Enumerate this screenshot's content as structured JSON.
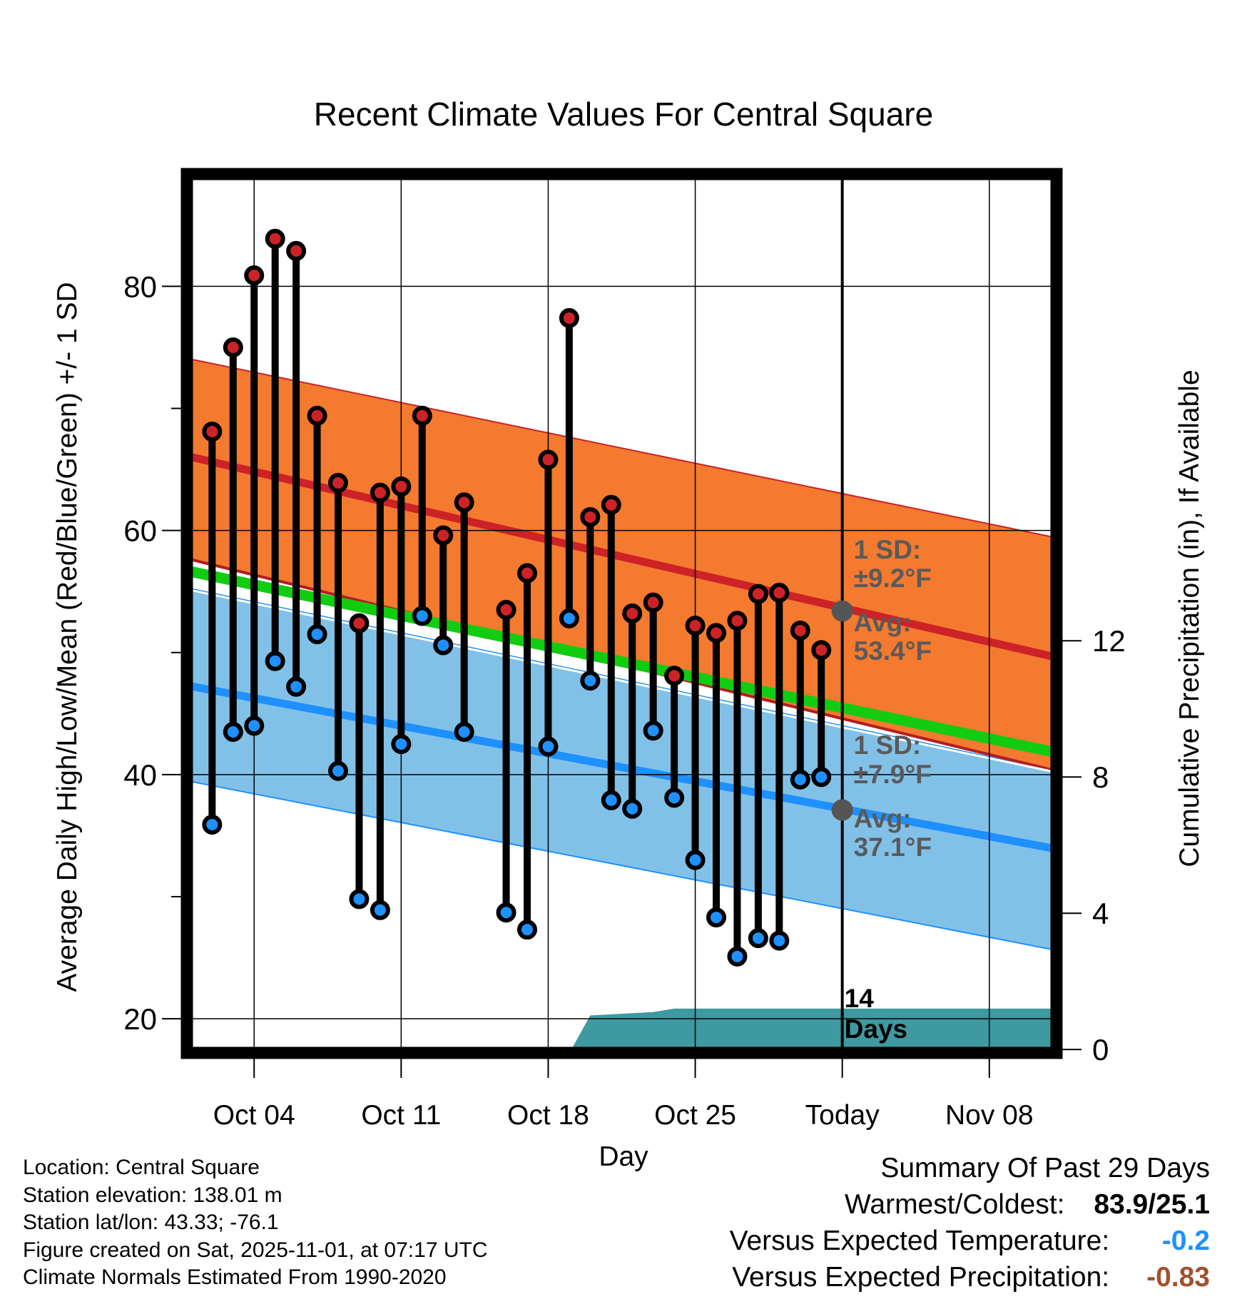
{
  "colors": {
    "high_band": "#f47a2f",
    "high_mean": "#cc2228",
    "low_band": "#82c1e7",
    "low_mean": "#1e90ff",
    "mean_line": "#11cc11",
    "high_dot": "#cc2228",
    "low_dot": "#1e90ff",
    "precip_fill": "#3f99a0",
    "annotation_text": "#5a5a5a",
    "temp_departure": "#1e90ff",
    "precip_departure": "#a0522d"
  },
  "chart_data": {
    "type": "line",
    "title": "Recent Climate Values For Central Square",
    "xlabel": "Day",
    "ylabel": "Average Daily High/Low/Mean (Red/Blue/Green) +/- 1 SD",
    "y2label": "Cumulative Precipitation (in), If Available",
    "x_range_days": [
      -31.2,
      10.2
    ],
    "ylim": [
      17.2,
      89.2
    ],
    "y2lim": [
      -0.1,
      25.7
    ],
    "y_ticks": [
      20,
      40,
      60,
      80
    ],
    "y_minor_ticks": [
      30,
      50,
      70
    ],
    "y2_ticks": [
      0,
      4,
      8,
      12
    ],
    "x_ticks": [
      {
        "day": -28,
        "label": "Oct 04"
      },
      {
        "day": -21,
        "label": "Oct 11"
      },
      {
        "day": -14,
        "label": "Oct 18"
      },
      {
        "day": -7,
        "label": "Oct 25"
      },
      {
        "day": 0,
        "label": "Today"
      },
      {
        "day": 7,
        "label": "Nov 08"
      }
    ],
    "grid": true,
    "normals": {
      "days": [
        -31.2,
        10.2
      ],
      "high_mean": [
        66.1,
        49.6
      ],
      "high_upper": [
        74.1,
        59.4
      ],
      "high_lower": [
        57.7,
        40.3
      ],
      "low_mean": [
        47.3,
        33.9
      ],
      "low_upper": [
        55.3,
        40.3
      ],
      "low_lower": [
        39.5,
        25.6
      ],
      "daily_mean": [
        56.7,
        41.8
      ]
    },
    "daily": {
      "days": [
        -30,
        -29,
        -28,
        -27,
        -26,
        -25,
        -24,
        -23,
        -22,
        -21,
        -20,
        -19,
        -18,
        -16,
        -15,
        -14,
        -13,
        -12,
        -11,
        -10,
        -9,
        -8,
        -7,
        -6,
        -5,
        -4,
        -3,
        -2,
        -1
      ],
      "high": [
        68.1,
        75.0,
        80.9,
        83.9,
        82.9,
        69.4,
        63.9,
        52.4,
        63.1,
        63.6,
        69.4,
        59.6,
        62.3,
        53.5,
        56.5,
        65.8,
        77.4,
        61.1,
        62.1,
        53.2,
        54.1,
        48.1,
        52.2,
        51.6,
        52.6,
        54.8,
        54.9,
        51.8,
        50.2
      ],
      "low": [
        35.9,
        43.5,
        44.0,
        49.3,
        47.2,
        51.5,
        40.3,
        29.8,
        28.9,
        42.5,
        53.0,
        50.6,
        43.5,
        28.7,
        27.3,
        42.3,
        52.8,
        47.7,
        37.9,
        37.2,
        43.6,
        38.1,
        33.0,
        28.3,
        25.1,
        26.6,
        26.4,
        39.6,
        39.8
      ]
    },
    "precip": {
      "days": [
        -12.9,
        -12.0,
        -9.0,
        -8.0,
        -7.0,
        10.2
      ],
      "cumulative": [
        0,
        1.0,
        1.1,
        1.2,
        1.2,
        1.2
      ]
    },
    "annotations": {
      "high_sd_label": "1 SD:",
      "high_sd_value": "±9.2°F",
      "high_avg_label": "Avg:",
      "high_avg_value": "53.4°F",
      "high_avg": 53.4,
      "low_sd_label": "1 SD:",
      "low_sd_value": "±7.9°F",
      "low_avg_label": "Avg:",
      "low_avg_value": "37.1°F",
      "low_avg": 37.1,
      "days_count": "14",
      "days_word": "Days"
    }
  },
  "info": {
    "location": "Location: Central Square",
    "elevation": "Station elevation: 138.01 m",
    "latlon": "Station lat/lon: 43.33; -76.1",
    "created": "Figure created on Sat, 2025-11-01, at 07:17 UTC",
    "normals": "Climate Normals Estimated From 1990-2020"
  },
  "summary": {
    "title": "Summary Of Past 29 Days",
    "warm_cold_label": "Warmest/Coldest:",
    "warm_cold_value": "83.9/25.1",
    "temp_label": "Versus Expected Temperature:",
    "temp_value": "-0.2",
    "precip_label": "Versus Expected Precipitation:",
    "precip_value": "-0.83"
  }
}
